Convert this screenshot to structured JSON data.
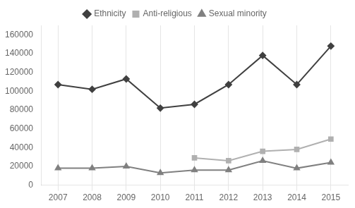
{
  "chart_data": {
    "type": "line",
    "x": [
      2007,
      2008,
      2009,
      2010,
      2011,
      2012,
      2013,
      2014,
      2015
    ],
    "series": [
      {
        "name": "Ethnicity",
        "color": "#404040",
        "marker": "diamond",
        "values": [
          107000,
          102000,
          113000,
          82000,
          86000,
          107000,
          138000,
          107000,
          148000
        ]
      },
      {
        "name": "Anti-religious",
        "color": "#b0b0b0",
        "marker": "square",
        "values": [
          null,
          null,
          null,
          null,
          29000,
          26000,
          36000,
          38000,
          49000
        ]
      },
      {
        "name": "Sexual minority",
        "color": "#808080",
        "marker": "triangle",
        "values": [
          18000,
          18000,
          20000,
          13000,
          16000,
          16000,
          26000,
          18000,
          24000
        ]
      }
    ],
    "xlim": [
      2006.5,
      2015.5
    ],
    "xticks": [
      2007,
      2008,
      2009,
      2010,
      2011,
      2012,
      2013,
      2014,
      2015
    ],
    "ylim": [
      0,
      170000
    ],
    "yticks": [
      0,
      20000,
      40000,
      60000,
      80000,
      100000,
      120000,
      140000,
      160000
    ],
    "grid": "x",
    "legend": "top"
  }
}
